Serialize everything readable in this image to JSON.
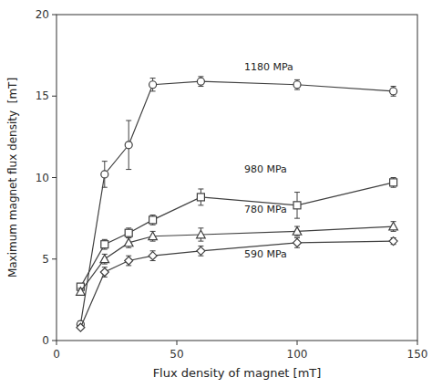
{
  "chart_data": {
    "type": "line",
    "xlabel": "Flux density of magnet [mT]",
    "ylabel": "Maximum magnet flux density  [mT]",
    "xlim": [
      0,
      150
    ],
    "ylim": [
      0,
      20
    ],
    "xticks": [
      0,
      50,
      100,
      150
    ],
    "yticks": [
      0,
      5,
      10,
      15,
      20
    ],
    "grid": false,
    "x": [
      10,
      20,
      30,
      40,
      60,
      100,
      140
    ],
    "series": [
      {
        "values": [
          1.0,
          10.2,
          12.0,
          15.7,
          15.9,
          15.7,
          15.3
        ],
        "yerr": [
          0.2,
          0.8,
          1.5,
          0.4,
          0.3,
          0.3,
          0.3
        ],
        "marker": "circle",
        "color": "#404040"
      },
      {
        "values": [
          3.3,
          5.9,
          6.6,
          7.4,
          8.8,
          8.3,
          9.7
        ],
        "yerr": [
          0.2,
          0.3,
          0.3,
          0.3,
          0.5,
          0.8,
          0.3
        ],
        "marker": "square",
        "color": "#404040"
      },
      {
        "values": [
          3.0,
          5.0,
          6.0,
          6.4,
          6.5,
          6.7,
          7.0
        ],
        "yerr": [
          0.2,
          0.3,
          0.3,
          0.3,
          0.4,
          0.3,
          0.3
        ],
        "marker": "triangle",
        "color": "#404040"
      },
      {
        "values": [
          0.8,
          4.2,
          4.9,
          5.2,
          5.5,
          6.0,
          6.1
        ],
        "yerr": [
          0.1,
          0.3,
          0.3,
          0.3,
          0.3,
          0.3,
          0.2
        ],
        "marker": "diamond",
        "color": "#404040"
      }
    ],
    "annotations": [
      {
        "text": "1180 MPa",
        "x": 78,
        "y": 16.6
      },
      {
        "text": "980 MPa",
        "x": 78,
        "y": 10.3
      },
      {
        "text": "780 MPa",
        "x": 78,
        "y": 7.85
      },
      {
        "text": "590 MPa",
        "x": 78,
        "y": 5.1
      }
    ]
  }
}
